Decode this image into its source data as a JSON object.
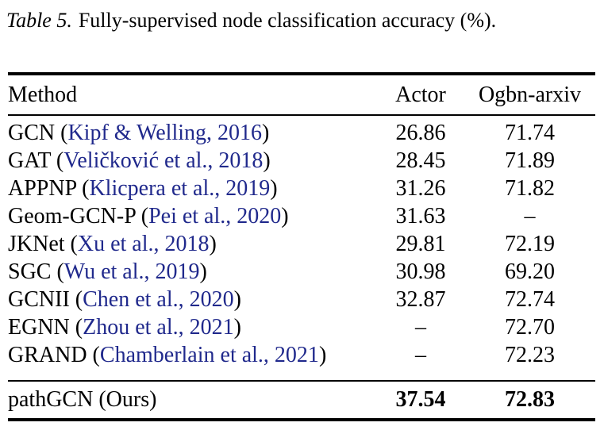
{
  "caption": {
    "label": "Table 5.",
    "text": "Fully-supervised node classification accuracy (%)."
  },
  "table": {
    "columns": [
      "Method",
      "Actor",
      "Ogbn-arxiv"
    ],
    "rows": [
      {
        "prefix": "GCN (",
        "citation": "Kipf & Welling, 2016",
        "suffix": ")",
        "actor": "26.86",
        "ogbn": "71.74"
      },
      {
        "prefix": "GAT (",
        "citation": "Veličković et al., 2018",
        "suffix": ")",
        "actor": "28.45",
        "ogbn": "71.89"
      },
      {
        "prefix": "APPNP (",
        "citation": "Klicpera et al., 2019",
        "suffix": ")",
        "actor": "31.26",
        "ogbn": "71.82"
      },
      {
        "prefix": "Geom-GCN-P (",
        "citation": "Pei et al., 2020",
        "suffix": ")",
        "actor": "31.63",
        "ogbn": "–"
      },
      {
        "prefix": "JKNet (",
        "citation": "Xu et al., 2018",
        "suffix": ")",
        "actor": "29.81",
        "ogbn": "72.19"
      },
      {
        "prefix": "SGC (",
        "citation": "Wu et al., 2019",
        "suffix": ")",
        "actor": "30.98",
        "ogbn": "69.20"
      },
      {
        "prefix": "GCNII (",
        "citation": "Chen et al., 2020",
        "suffix": ")",
        "actor": "32.87",
        "ogbn": "72.74"
      },
      {
        "prefix": "EGNN (",
        "citation": "Zhou et al., 2021",
        "suffix": ")",
        "actor": "–",
        "ogbn": "72.70"
      },
      {
        "prefix": "GRAND (",
        "citation": "Chamberlain et al., 2021",
        "suffix": ")",
        "actor": "–",
        "ogbn": "72.23"
      }
    ],
    "final_row": {
      "method": "pathGCN (Ours)",
      "actor": "37.54",
      "ogbn": "72.83"
    }
  },
  "colors": {
    "citation_blue": "#20298c",
    "text": "#000000",
    "rule": "#000000",
    "background": "#ffffff"
  }
}
